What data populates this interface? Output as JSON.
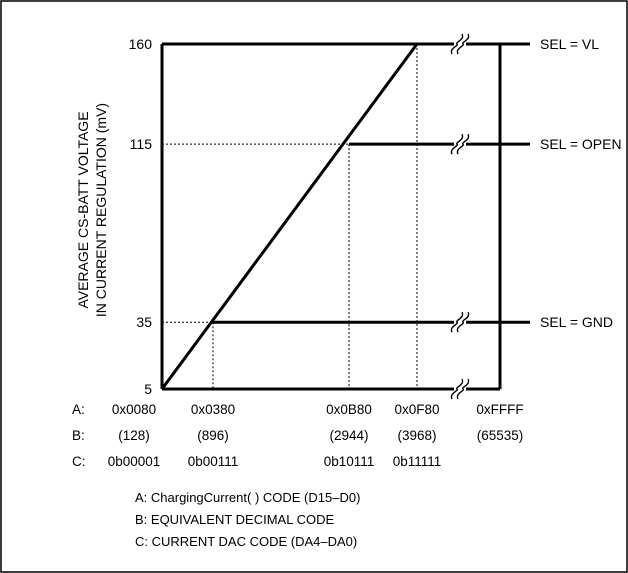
{
  "chart_data": {
    "type": "line",
    "ylabel_lines": [
      "AVERAGE CS-BATT VOLTAGE",
      "IN CURRENT REGULATION (mV)"
    ],
    "y_ticks": [
      5,
      35,
      115,
      160
    ],
    "x_ticks": [
      {
        "code": 128,
        "a": "0x0080",
        "b": "(128)",
        "c": "0b00001"
      },
      {
        "code": 896,
        "a": "0x0380",
        "b": "(896)",
        "c": "0b00111"
      },
      {
        "code": 2944,
        "a": "0x0B80",
        "b": "(2944)",
        "c": "0b10111"
      },
      {
        "code": 3968,
        "a": "0x0F80",
        "b": "(3968)",
        "c": "0b11111"
      },
      {
        "code": 65535,
        "a": "0xFFFF",
        "b": "(65535)",
        "c": ""
      }
    ],
    "row_labels": {
      "a": "A:",
      "b": "B:",
      "c": "C:"
    },
    "ramp": {
      "x": [
        128,
        3968
      ],
      "y": [
        5,
        160
      ]
    },
    "series": [
      {
        "name": "SEL = VL",
        "x": [
          128,
          3968,
          65535
        ],
        "y": [
          5,
          160,
          160
        ]
      },
      {
        "name": "SEL = OPEN",
        "x": [
          128,
          2944,
          65535
        ],
        "y": [
          5,
          115,
          115
        ]
      },
      {
        "name": "SEL = GND",
        "x": [
          128,
          896,
          65535
        ],
        "y": [
          5,
          35,
          35
        ]
      }
    ],
    "baseline": {
      "x": [
        128,
        65535
      ],
      "y": [
        5,
        5
      ]
    },
    "legend_notes": [
      "A:  ChargingCurrent( ) CODE (D15–D0)",
      "B:  EQUIVALENT DECIMAL CODE",
      "C:  CURRENT DAC CODE (DA4–DA0)"
    ],
    "axis_break": true,
    "grid": false,
    "ylim": [
      5,
      160
    ]
  }
}
